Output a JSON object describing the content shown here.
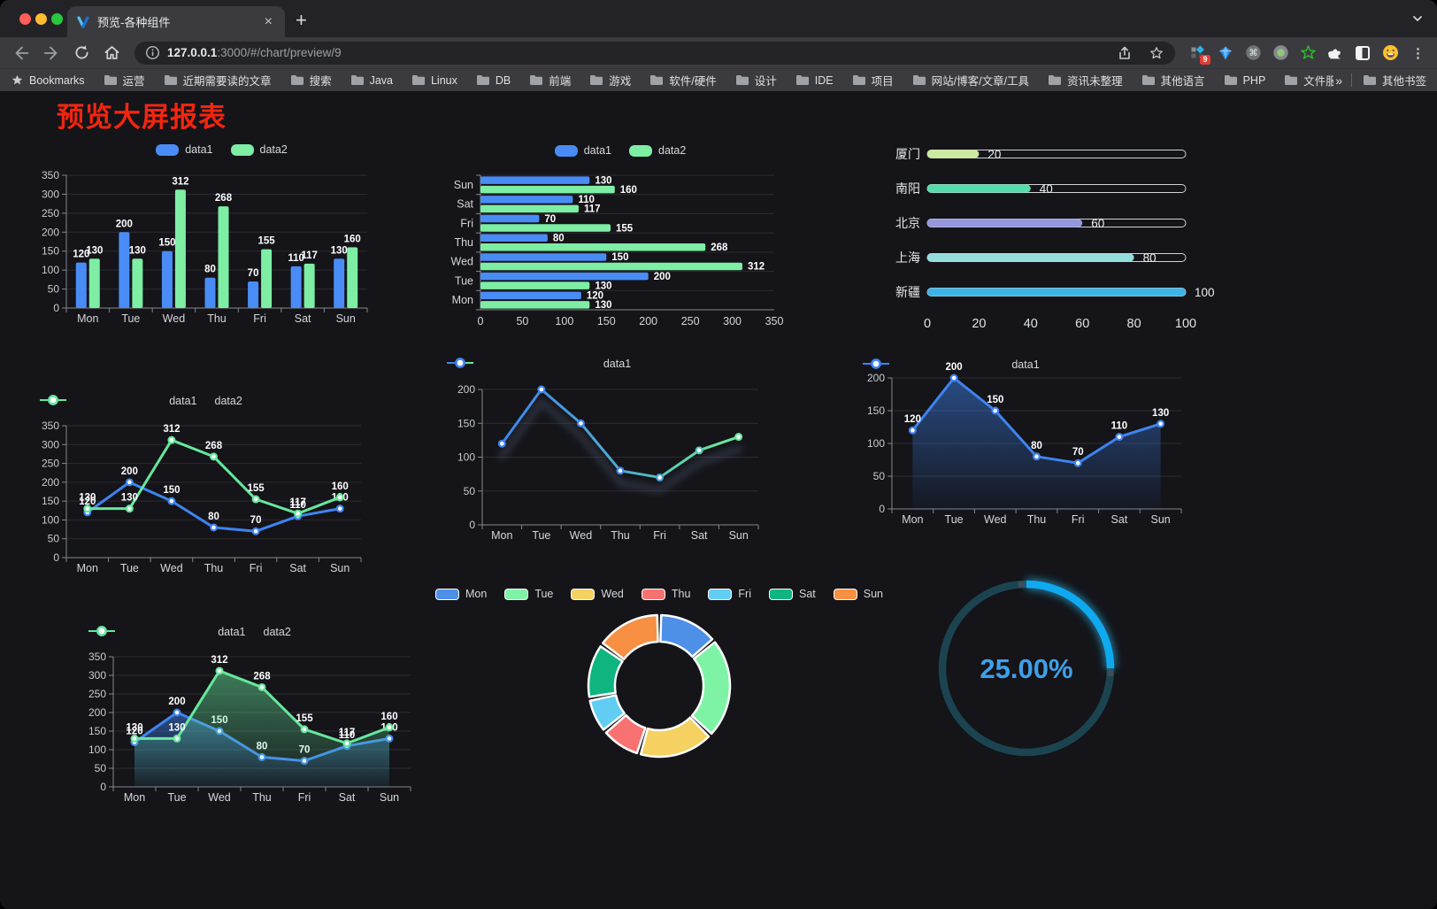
{
  "browser": {
    "tab_title": "预览-各种组件",
    "url_host": "127.0.0.1",
    "url_rest": ":3000/#/chart/preview/9",
    "bookmarks_label": "Bookmarks",
    "bookmarks": [
      "运营",
      "近期需要读的文章",
      "搜索",
      "Java",
      "Linux",
      "DB",
      "前端",
      "游戏",
      "软件/硬件",
      "设计",
      "IDE",
      "项目",
      "网站/博客/文章/工具",
      "资讯未整理",
      "其他语言",
      "PHP",
      "文件服务器"
    ],
    "overflow_label": "»",
    "other_bookmarks": "其他书签",
    "extension_badge": "9"
  },
  "page": {
    "title": "预览大屏报表"
  },
  "colors": {
    "series_blue": "#4a8cf5",
    "series_green": "#7deea4",
    "accent_red": "#f3250f"
  },
  "chart_data": [
    {
      "id": "bar1",
      "type": "bar",
      "categories": [
        "Mon",
        "Tue",
        "Wed",
        "Thu",
        "Fri",
        "Sat",
        "Sun"
      ],
      "series": [
        {
          "name": "data1",
          "color": "#4a8cf5",
          "values": [
            120,
            200,
            150,
            80,
            70,
            110,
            130
          ]
        },
        {
          "name": "data2",
          "color": "#7deea4",
          "values": [
            130,
            130,
            312,
            268,
            155,
            117,
            160
          ]
        }
      ],
      "ylim": [
        0,
        350
      ],
      "ystep": 50,
      "labels": true,
      "legend_pos": "top"
    },
    {
      "id": "hbar1",
      "type": "hbar",
      "categories": [
        "Mon",
        "Tue",
        "Wed",
        "Thu",
        "Fri",
        "Sat",
        "Sun"
      ],
      "series": [
        {
          "name": "data1",
          "color": "#4a8cf5",
          "values": [
            120,
            200,
            150,
            80,
            70,
            110,
            130
          ]
        },
        {
          "name": "data2",
          "color": "#7deea4",
          "values": [
            130,
            130,
            312,
            268,
            155,
            117,
            160
          ]
        }
      ],
      "xlim": [
        0,
        350
      ],
      "xstep": 50,
      "labels": true,
      "legend_pos": "top"
    },
    {
      "id": "progress1",
      "type": "progress",
      "rows": [
        {
          "label": "厦门",
          "value": 20,
          "color": "#cde9a0"
        },
        {
          "label": "南阳",
          "value": 40,
          "color": "#55dcab"
        },
        {
          "label": "北京",
          "value": 60,
          "color": "#9598dc"
        },
        {
          "label": "上海",
          "value": 80,
          "color": "#93dedd"
        },
        {
          "label": "新疆",
          "value": 100,
          "color": "#3cb4e7"
        }
      ],
      "axis_ticks": [
        0,
        20,
        40,
        60,
        80,
        100
      ],
      "xlim": [
        0,
        100
      ]
    },
    {
      "id": "line1",
      "type": "line",
      "categories": [
        "Mon",
        "Tue",
        "Wed",
        "Thu",
        "Fri",
        "Sat",
        "Sun"
      ],
      "series": [
        {
          "name": "data1",
          "color": "#3e84f0",
          "values": [
            120,
            200,
            150,
            80,
            70,
            110,
            130
          ]
        },
        {
          "name": "data2",
          "color": "#67e79c",
          "values": [
            130,
            130,
            312,
            268,
            155,
            117,
            160
          ]
        }
      ],
      "ylim": [
        0,
        350
      ],
      "ystep": 50,
      "labels": true
    },
    {
      "id": "line2",
      "type": "line",
      "categories": [
        "Mon",
        "Tue",
        "Wed",
        "Thu",
        "Fri",
        "Sat",
        "Sun"
      ],
      "series": [
        {
          "name": "data1",
          "gradient": [
            "#3e84f0",
            "#67e79c"
          ],
          "values": [
            120,
            200,
            150,
            80,
            70,
            110,
            130
          ]
        }
      ],
      "ylim": [
        0,
        200
      ],
      "ystep": 50,
      "labels": false,
      "shadow": true
    },
    {
      "id": "area1",
      "type": "line",
      "categories": [
        "Mon",
        "Tue",
        "Wed",
        "Thu",
        "Fri",
        "Sat",
        "Sun"
      ],
      "series": [
        {
          "name": "data1",
          "color": "#3e84f0",
          "area": true,
          "values": [
            120,
            200,
            150,
            80,
            70,
            110,
            130
          ]
        }
      ],
      "ylim": [
        0,
        200
      ],
      "ystep": 50,
      "labels": true
    },
    {
      "id": "area2",
      "type": "line",
      "categories": [
        "Mon",
        "Tue",
        "Wed",
        "Thu",
        "Fri",
        "Sat",
        "Sun"
      ],
      "series": [
        {
          "name": "data1",
          "color": "#3e84f0",
          "area": true,
          "values": [
            120,
            200,
            150,
            80,
            70,
            110,
            130
          ]
        },
        {
          "name": "data2",
          "color": "#67e79c",
          "area": true,
          "values": [
            130,
            130,
            312,
            268,
            155,
            117,
            160
          ]
        }
      ],
      "ylim": [
        0,
        350
      ],
      "ystep": 50,
      "labels": true
    },
    {
      "id": "donut1",
      "type": "donut",
      "items": [
        {
          "label": "Mon",
          "value": 120,
          "color": "#4e8fe8"
        },
        {
          "label": "Tue",
          "value": 200,
          "color": "#7ef3a5"
        },
        {
          "label": "Wed",
          "value": 150,
          "color": "#f5d161"
        },
        {
          "label": "Thu",
          "value": 80,
          "color": "#f87272"
        },
        {
          "label": "Fri",
          "value": 70,
          "color": "#62cdf2"
        },
        {
          "label": "Sat",
          "value": 110,
          "color": "#0fb57f"
        },
        {
          "label": "Sun",
          "value": 130,
          "color": "#f79042"
        }
      ]
    },
    {
      "id": "gauge1",
      "type": "gauge",
      "value_pct": 25,
      "display": "25.00%",
      "color": "#0fa9f0",
      "track_color": "#1c4450",
      "text_color": "#3fa0e8"
    }
  ]
}
